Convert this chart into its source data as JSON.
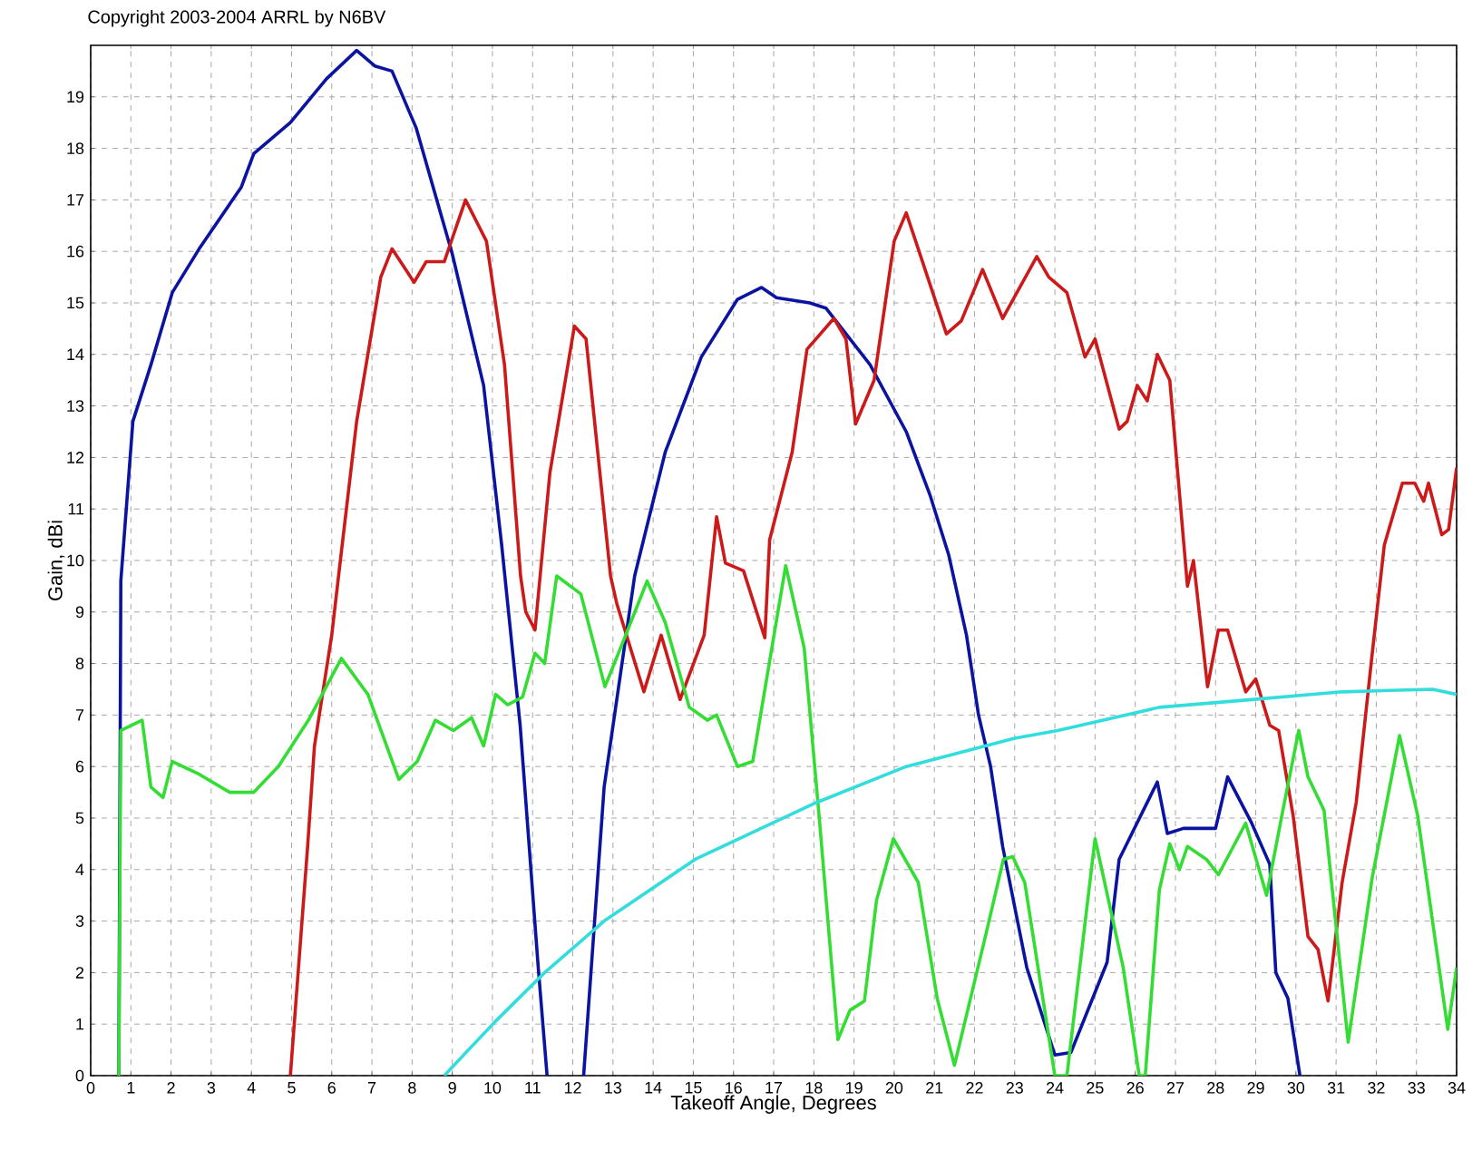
{
  "chart_data": {
    "type": "line",
    "xlabel": "Takeoff Angle, Degrees",
    "ylabel": "Gain, dBi",
    "annotations": [
      "Copyright 2003-2004 ARRL by N6BV"
    ],
    "xlim": [
      0,
      34
    ],
    "ylim": [
      0,
      20
    ],
    "xticks": [
      0,
      1,
      2,
      3,
      4,
      5,
      6,
      7,
      8,
      9,
      10,
      11,
      12,
      13,
      14,
      15,
      16,
      17,
      18,
      19,
      20,
      21,
      22,
      23,
      24,
      25,
      26,
      27,
      28,
      29,
      30,
      31,
      32,
      33,
      34
    ],
    "yticks": [
      0,
      1,
      2,
      3,
      4,
      5,
      6,
      7,
      8,
      9,
      10,
      11,
      12,
      13,
      14,
      15,
      16,
      17,
      18,
      19
    ],
    "grid": true,
    "marker": "none",
    "line_style": "solid",
    "series": [
      {
        "color": "#0a14a0",
        "x": [
          0.7,
          0.75,
          1.05,
          1.5,
          2.03,
          2.7,
          3.75,
          4.06,
          4.97,
          5.87,
          6.62,
          7.07,
          7.5,
          8.1,
          9.0,
          9.78,
          10.23,
          10.69,
          11.14,
          11.36,
          11.8,
          12.27,
          12.78,
          13.54,
          14.3,
          15.2,
          16.1,
          16.7,
          17.07,
          17.9,
          18.3,
          19.4,
          20.3,
          20.9,
          21.36,
          21.8,
          22.1,
          22.4,
          22.7,
          23.3,
          24.0,
          24.4,
          25.3,
          25.6,
          26.55,
          26.8,
          27.2,
          28.0,
          28.3,
          28.9,
          29.35,
          29.5,
          29.8,
          30.1
        ],
        "values": [
          0,
          9.6,
          12.7,
          13.8,
          15.2,
          16.05,
          17.25,
          17.9,
          18.5,
          19.35,
          19.9,
          19.6,
          19.5,
          18.4,
          15.95,
          13.4,
          10.3,
          6.8,
          2.1,
          0,
          null,
          0,
          5.6,
          9.7,
          12.1,
          13.95,
          15.07,
          15.3,
          15.1,
          15.0,
          14.9,
          13.8,
          12.5,
          11.25,
          10.1,
          8.55,
          7.0,
          6.0,
          4.45,
          2.1,
          0.4,
          0.45,
          2.2,
          4.2,
          5.7,
          4.7,
          4.8,
          4.8,
          5.8,
          4.9,
          4.1,
          2.0,
          1.5,
          0
        ]
      },
      {
        "color": "#cc1a1a",
        "x": [
          4.97,
          5.4,
          5.57,
          6.0,
          6.17,
          6.62,
          7.22,
          7.5,
          8.05,
          8.35,
          8.8,
          9.33,
          9.85,
          10.3,
          10.7,
          10.83,
          11.06,
          11.43,
          12.04,
          12.33,
          12.94,
          13.1,
          13.77,
          14.2,
          14.67,
          15.27,
          15.58,
          15.8,
          16.25,
          16.78,
          16.9,
          17.46,
          17.83,
          18.5,
          18.8,
          19.04,
          19.5,
          20.0,
          20.3,
          21.3,
          21.67,
          22.2,
          22.7,
          23.55,
          23.85,
          24.3,
          24.75,
          25.0,
          25.6,
          25.8,
          26.05,
          26.3,
          26.55,
          26.86,
          27.3,
          27.45,
          27.8,
          28.07,
          28.3,
          28.75,
          29.0,
          29.35,
          29.57,
          29.93,
          30.3,
          30.55,
          30.8,
          31.15,
          31.5,
          31.9,
          32.2,
          32.65,
          32.96,
          33.18,
          33.3,
          33.63,
          33.8,
          34.0
        ],
        "values": [
          0,
          4.45,
          6.4,
          8.55,
          9.7,
          12.7,
          15.5,
          16.05,
          15.4,
          15.8,
          15.8,
          17.0,
          16.2,
          13.8,
          9.7,
          9.0,
          8.65,
          11.7,
          14.55,
          14.3,
          9.7,
          9.15,
          7.45,
          8.55,
          7.3,
          8.55,
          10.85,
          9.95,
          9.8,
          8.5,
          10.4,
          12.1,
          14.1,
          14.7,
          14.3,
          12.65,
          13.5,
          16.2,
          16.75,
          14.4,
          14.65,
          15.65,
          14.7,
          15.9,
          15.5,
          15.2,
          13.95,
          14.3,
          12.55,
          12.7,
          13.4,
          13.1,
          14.0,
          13.5,
          9.5,
          10.0,
          7.55,
          8.65,
          8.65,
          7.45,
          7.7,
          6.8,
          6.7,
          5.05,
          2.7,
          2.45,
          1.45,
          3.75,
          5.3,
          8.2,
          10.3,
          11.5,
          11.5,
          11.15,
          11.5,
          10.5,
          10.6,
          11.8
        ]
      },
      {
        "color": "#33dd33",
        "x": [
          0.7,
          0.75,
          1.28,
          1.5,
          1.8,
          2.03,
          2.7,
          3.46,
          4.06,
          4.67,
          5.42,
          6.24,
          6.9,
          7.67,
          8.13,
          8.58,
          9.03,
          9.48,
          9.78,
          10.08,
          10.38,
          10.75,
          11.06,
          11.3,
          11.6,
          12.2,
          12.8,
          13.24,
          13.85,
          14.3,
          14.9,
          15.35,
          15.58,
          16.1,
          16.48,
          17.3,
          17.76,
          18.13,
          18.6,
          18.9,
          19.26,
          19.56,
          19.98,
          20.6,
          21.07,
          21.5,
          22.27,
          22.72,
          22.95,
          23.25,
          24.0,
          24.3,
          25.0,
          25.7,
          26.1,
          26.25,
          26.6,
          26.86,
          27.1,
          27.3,
          27.77,
          28.07,
          28.75,
          29.27,
          29.65,
          30.07,
          30.3,
          30.7,
          31.3,
          31.9,
          32.58,
          33.03,
          33.78,
          34.0
        ],
        "values": [
          0,
          6.7,
          6.9,
          5.6,
          5.4,
          6.1,
          5.85,
          5.5,
          5.5,
          6.0,
          6.9,
          8.1,
          7.4,
          5.75,
          6.1,
          6.9,
          6.7,
          6.95,
          6.4,
          7.4,
          7.2,
          7.35,
          8.2,
          8.0,
          9.7,
          9.35,
          7.55,
          8.4,
          9.6,
          8.8,
          7.15,
          6.9,
          7.0,
          6.0,
          6.1,
          9.9,
          8.3,
          5.05,
          0.7,
          1.27,
          1.45,
          3.4,
          4.6,
          3.75,
          1.5,
          0.2,
          2.7,
          4.2,
          4.25,
          3.75,
          0,
          0,
          4.6,
          2.1,
          0,
          0,
          3.6,
          4.5,
          4.0,
          4.45,
          4.2,
          3.9,
          4.9,
          3.5,
          5.05,
          6.7,
          5.8,
          5.15,
          0.65,
          3.85,
          6.6,
          5.05,
          0.9,
          2.1
        ]
      },
      {
        "color": "#33dddd",
        "x": [
          8.8,
          10.07,
          11.3,
          12.78,
          15.05,
          18.06,
          20.3,
          23.0,
          24.07,
          26.6,
          28.9,
          31.15,
          33.4,
          34.0
        ],
        "values": [
          0,
          1.05,
          2.0,
          3.0,
          4.2,
          5.3,
          6.0,
          6.55,
          6.7,
          7.15,
          7.3,
          7.45,
          7.5,
          7.4
        ]
      }
    ]
  }
}
